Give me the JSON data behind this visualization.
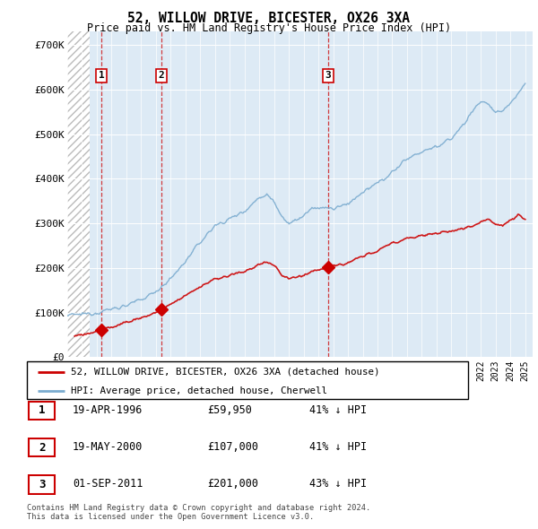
{
  "title": "52, WILLOW DRIVE, BICESTER, OX26 3XA",
  "subtitle": "Price paid vs. HM Land Registry's House Price Index (HPI)",
  "xlim_start": 1994.0,
  "xlim_end": 2025.5,
  "ylim": [
    0,
    730000
  ],
  "yticks": [
    0,
    100000,
    200000,
    300000,
    400000,
    500000,
    600000,
    700000
  ],
  "ytick_labels": [
    "£0",
    "£100K",
    "£200K",
    "£300K",
    "£400K",
    "£500K",
    "£600K",
    "£700K"
  ],
  "sales": [
    {
      "year": 1996.3,
      "price": 59950,
      "label": "1"
    },
    {
      "year": 2000.38,
      "price": 107000,
      "label": "2"
    },
    {
      "year": 2011.67,
      "price": 201000,
      "label": "3"
    }
  ],
  "sale_color": "#cc0000",
  "hpi_color": "#7aabcf",
  "legend_entries": [
    "52, WILLOW DRIVE, BICESTER, OX26 3XA (detached house)",
    "HPI: Average price, detached house, Cherwell"
  ],
  "table_rows": [
    {
      "num": "1",
      "date": "19-APR-1996",
      "price": "£59,950",
      "hpi": "41% ↓ HPI"
    },
    {
      "num": "2",
      "date": "19-MAY-2000",
      "price": "£107,000",
      "hpi": "41% ↓ HPI"
    },
    {
      "num": "3",
      "date": "01-SEP-2011",
      "price": "£201,000",
      "hpi": "43% ↓ HPI"
    }
  ],
  "copyright": "Contains HM Land Registry data © Crown copyright and database right 2024.\nThis data is licensed under the Open Government Licence v3.0.",
  "bg_hatched_end": 1995.5,
  "hpi_keypoints": [
    [
      1994.0,
      93000
    ],
    [
      1995.0,
      96000
    ],
    [
      1995.5,
      98000
    ],
    [
      1996.0,
      100000
    ],
    [
      1997.0,
      108000
    ],
    [
      1998.0,
      116000
    ],
    [
      1999.0,
      128000
    ],
    [
      2000.0,
      148000
    ],
    [
      2001.0,
      175000
    ],
    [
      2002.0,
      215000
    ],
    [
      2003.0,
      258000
    ],
    [
      2004.0,
      295000
    ],
    [
      2005.0,
      310000
    ],
    [
      2006.0,
      328000
    ],
    [
      2007.0,
      358000
    ],
    [
      2007.5,
      365000
    ],
    [
      2008.0,
      350000
    ],
    [
      2008.5,
      318000
    ],
    [
      2009.0,
      300000
    ],
    [
      2009.5,
      306000
    ],
    [
      2010.0,
      318000
    ],
    [
      2010.5,
      330000
    ],
    [
      2011.0,
      336000
    ],
    [
      2011.5,
      335000
    ],
    [
      2012.0,
      332000
    ],
    [
      2013.0,
      345000
    ],
    [
      2014.0,
      368000
    ],
    [
      2015.0,
      390000
    ],
    [
      2016.0,
      415000
    ],
    [
      2017.0,
      445000
    ],
    [
      2017.5,
      455000
    ],
    [
      2018.0,
      460000
    ],
    [
      2018.5,
      468000
    ],
    [
      2019.0,
      472000
    ],
    [
      2019.5,
      480000
    ],
    [
      2020.0,
      490000
    ],
    [
      2020.5,
      510000
    ],
    [
      2021.0,
      530000
    ],
    [
      2021.5,
      555000
    ],
    [
      2022.0,
      575000
    ],
    [
      2022.5,
      568000
    ],
    [
      2023.0,
      545000
    ],
    [
      2023.5,
      555000
    ],
    [
      2024.0,
      570000
    ],
    [
      2024.5,
      590000
    ],
    [
      2025.0,
      615000
    ]
  ],
  "pp_keypoints": [
    [
      1994.5,
      47000
    ],
    [
      1995.0,
      51000
    ],
    [
      1995.5,
      54000
    ],
    [
      1996.0,
      57000
    ],
    [
      1996.3,
      59950
    ],
    [
      1997.0,
      68000
    ],
    [
      1998.0,
      78000
    ],
    [
      1999.0,
      88000
    ],
    [
      2000.0,
      100000
    ],
    [
      2000.38,
      107000
    ],
    [
      2001.0,
      118000
    ],
    [
      2002.0,
      138000
    ],
    [
      2003.0,
      158000
    ],
    [
      2004.0,
      175000
    ],
    [
      2005.0,
      182000
    ],
    [
      2006.0,
      192000
    ],
    [
      2007.0,
      208000
    ],
    [
      2007.5,
      213000
    ],
    [
      2008.0,
      205000
    ],
    [
      2008.5,
      185000
    ],
    [
      2009.0,
      175000
    ],
    [
      2009.5,
      178000
    ],
    [
      2010.0,
      185000
    ],
    [
      2010.5,
      192000
    ],
    [
      2011.0,
      196000
    ],
    [
      2011.67,
      201000
    ],
    [
      2012.0,
      203000
    ],
    [
      2013.0,
      212000
    ],
    [
      2014.0,
      225000
    ],
    [
      2015.0,
      240000
    ],
    [
      2016.0,
      255000
    ],
    [
      2017.0,
      268000
    ],
    [
      2018.0,
      272000
    ],
    [
      2019.0,
      278000
    ],
    [
      2020.0,
      282000
    ],
    [
      2021.0,
      290000
    ],
    [
      2022.0,
      305000
    ],
    [
      2022.5,
      310000
    ],
    [
      2023.0,
      298000
    ],
    [
      2023.5,
      295000
    ],
    [
      2024.0,
      308000
    ],
    [
      2024.5,
      318000
    ],
    [
      2025.0,
      310000
    ]
  ]
}
